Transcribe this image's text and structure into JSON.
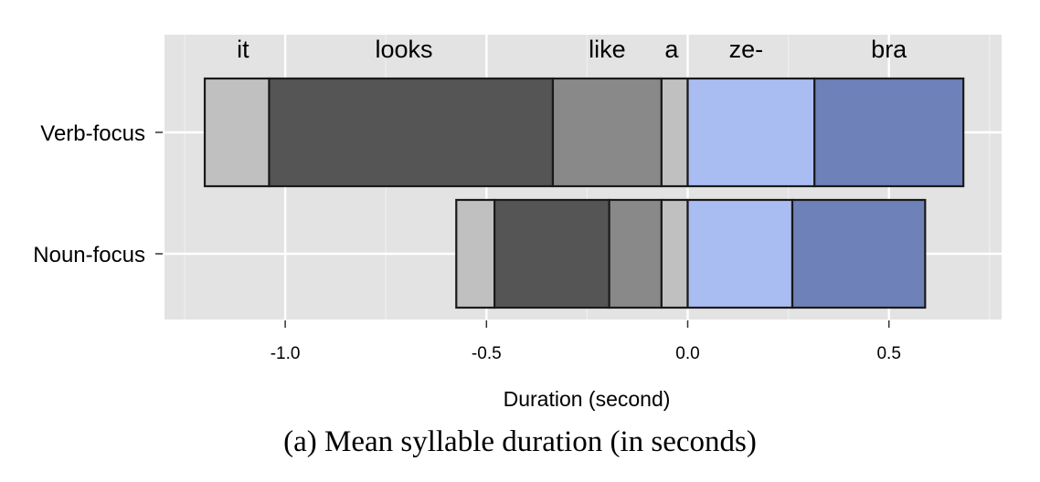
{
  "caption": "(a) Mean syllable duration (in seconds)",
  "chart_data": {
    "type": "bar",
    "orientation": "horizontal-stacked",
    "xlabel": "Duration (second)",
    "ylabel": "",
    "xlim": [
      -1.3,
      0.78
    ],
    "xticks": [
      -1.0,
      -0.5,
      0.0,
      0.5
    ],
    "xtick_labels": [
      "-1.0",
      "-0.5",
      "0.0",
      "0.5"
    ],
    "grid": true,
    "categories": [
      "Verb-focus",
      "Noun-focus"
    ],
    "syllables": [
      "it",
      "looks",
      "like",
      "a",
      "ze-",
      "bra"
    ],
    "syllable_colors": [
      "#c0c0c0",
      "#555555",
      "#898989",
      "#c0c0c0",
      "#aabdf2",
      "#6e81b8"
    ],
    "series": [
      {
        "category": "Verb-focus",
        "boundaries": [
          -1.2,
          -1.04,
          -0.335,
          -0.065,
          0.0,
          0.315,
          0.685
        ]
      },
      {
        "category": "Noun-focus",
        "boundaries": [
          -0.575,
          -0.48,
          -0.195,
          -0.065,
          0.0,
          0.26,
          0.59
        ]
      }
    ],
    "syllable_label_x": [
      -1.105,
      -0.705,
      -0.2,
      -0.04,
      0.145,
      0.5
    ]
  }
}
